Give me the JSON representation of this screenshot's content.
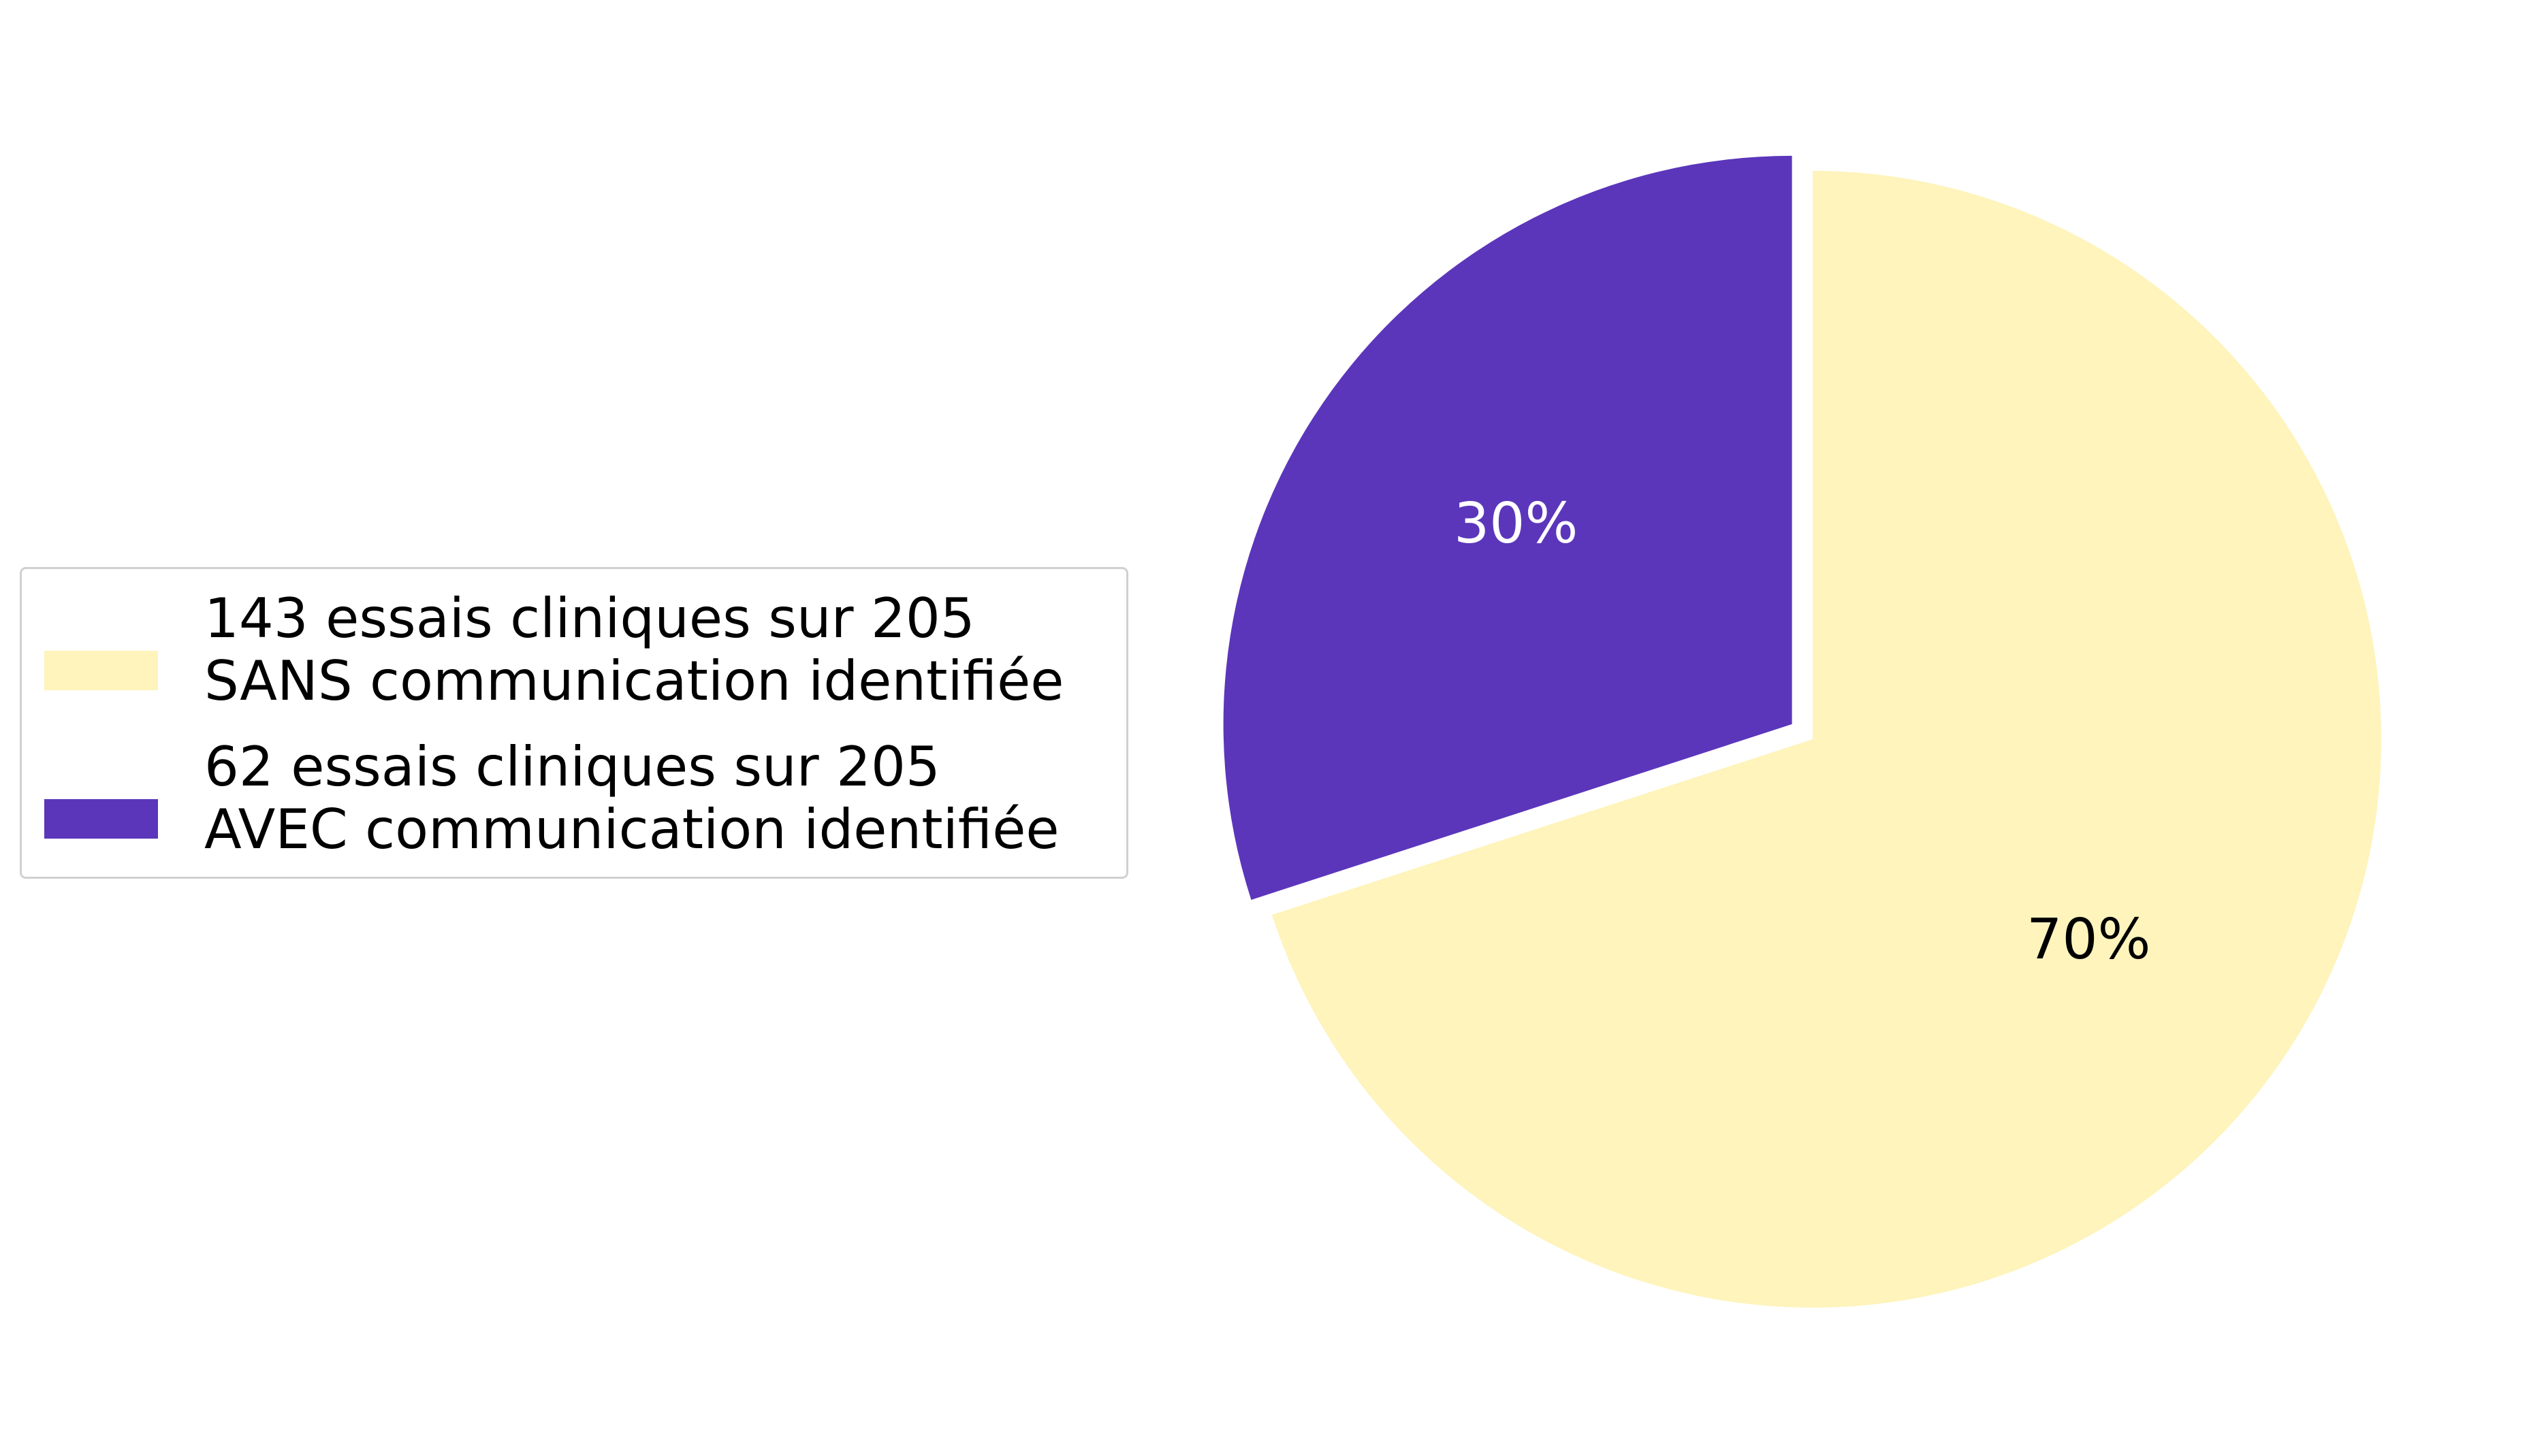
{
  "chart_data": {
    "type": "pie",
    "title": "",
    "start_angle_deg": 90,
    "direction": "clockwise",
    "slices": [
      {
        "label_lines": [
          "143 essais cliniques sur 205",
          "SANS communication identifiée"
        ],
        "count": 143,
        "total": 205,
        "value": 70,
        "display": "70%",
        "color": "#fef4bc",
        "text_color": "#000000",
        "exploded": false
      },
      {
        "label_lines": [
          "62 essais cliniques sur 205",
          "AVEC communication identifiée"
        ],
        "count": 62,
        "total": 205,
        "value": 30,
        "display": "30%",
        "color": "#5b36bb",
        "text_color": "#ffffff",
        "exploded": true
      }
    ],
    "legend": {
      "placement": "left"
    }
  }
}
